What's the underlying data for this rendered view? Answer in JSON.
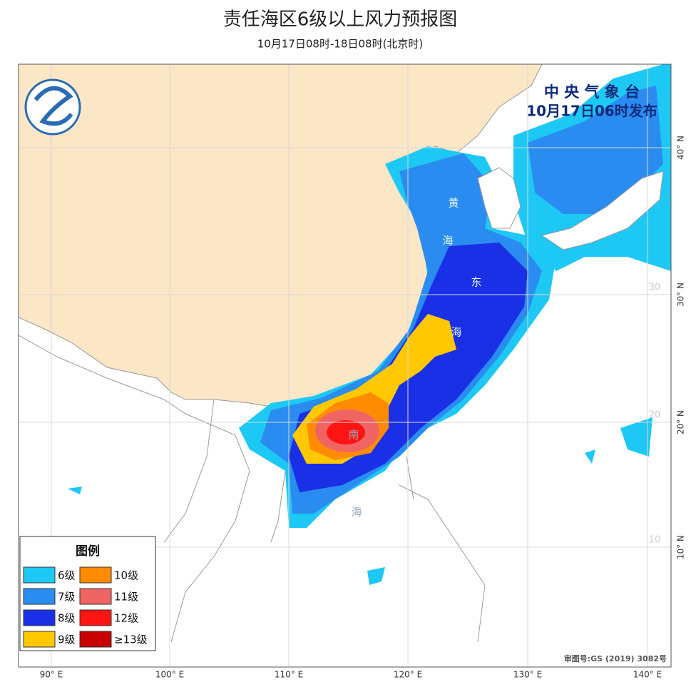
{
  "header": {
    "title": "责任海区6级以上风力预报图",
    "subtitle": "10月17日08时-18日08时(北京时)"
  },
  "agency": {
    "name": "中 央 气 象 台",
    "issued": "10月17日06时发布"
  },
  "sea_labels": [
    "黄",
    "海",
    "东",
    "海",
    "南",
    "海"
  ],
  "lon_labels": [
    "90° E",
    "100° E",
    "110° E",
    "120° E",
    "130° E",
    "140° E"
  ],
  "lat_labels": [
    "40° N",
    "30° N",
    "20° N",
    "10° N"
  ],
  "inner_lat_labels": [
    "30",
    "20",
    "10"
  ],
  "legend": {
    "title": "图例",
    "items": [
      {
        "label": "6级",
        "color": "#1ec8f5"
      },
      {
        "label": "7级",
        "color": "#2a8cf0"
      },
      {
        "label": "8级",
        "color": "#1a30e6"
      },
      {
        "label": "9级",
        "color": "#ffc800"
      },
      {
        "label": "10级",
        "color": "#ff8c00"
      },
      {
        "label": "11级",
        "color": "#f06464"
      },
      {
        "label": "12级",
        "color": "#ff1414"
      },
      {
        "label": "≥13级",
        "color": "#c80000"
      }
    ]
  },
  "approval": "审图号:GS (2019) 3082号"
}
